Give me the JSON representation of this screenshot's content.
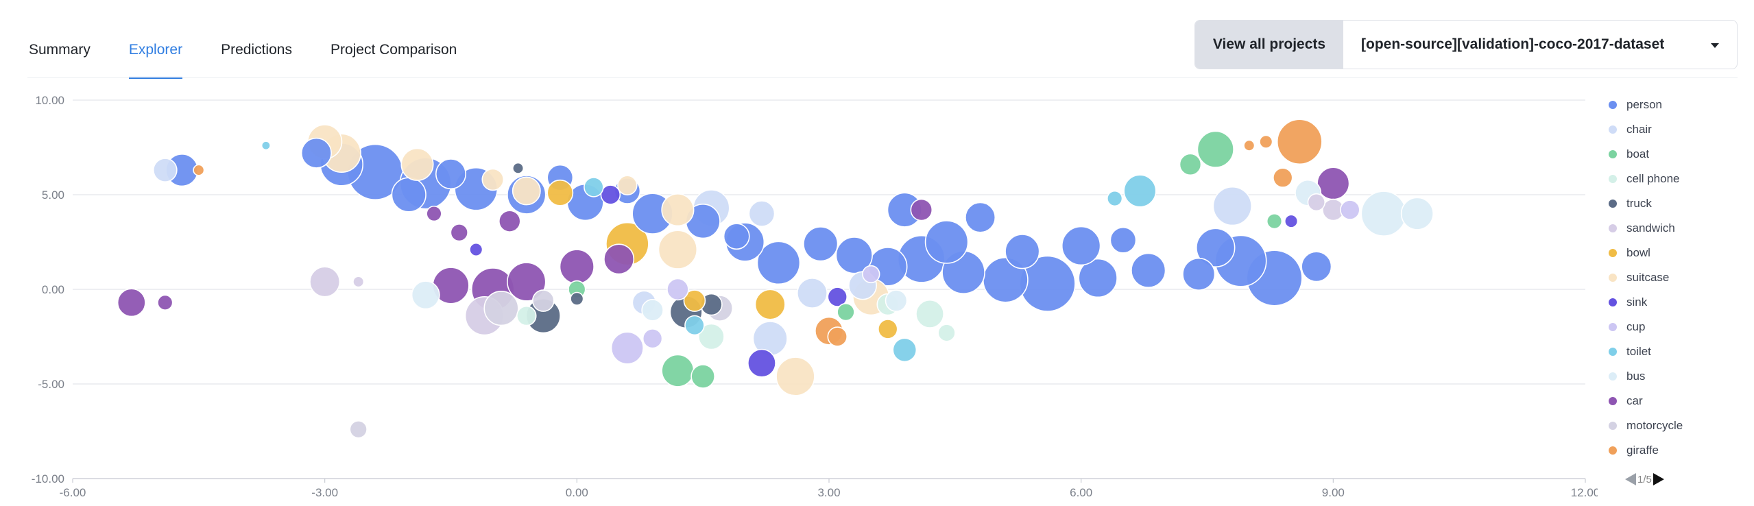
{
  "tabs": [
    {
      "label": "Summary",
      "active": false
    },
    {
      "label": "Explorer",
      "active": true
    },
    {
      "label": "Predictions",
      "active": false
    },
    {
      "label": "Project Comparison",
      "active": false
    }
  ],
  "header": {
    "view_all_label": "View all projects",
    "project_name": "[open-source][validation]-coco-2017-dataset"
  },
  "legend": {
    "items": [
      {
        "label": "person",
        "color": "#6b8ff0"
      },
      {
        "label": "chair",
        "color": "#cfdcf7"
      },
      {
        "label": "boat",
        "color": "#7bd3a0"
      },
      {
        "label": "cell phone",
        "color": "#d4f0e8"
      },
      {
        "label": "truck",
        "color": "#5b6b86"
      },
      {
        "label": "sandwich",
        "color": "#d6cde6"
      },
      {
        "label": "bowl",
        "color": "#f0bc45"
      },
      {
        "label": "suitcase",
        "color": "#f9e4c4"
      },
      {
        "label": "sink",
        "color": "#6452e0"
      },
      {
        "label": "cup",
        "color": "#ccc6f3"
      },
      {
        "label": "toilet",
        "color": "#7fcfe9"
      },
      {
        "label": "bus",
        "color": "#dcedf7"
      },
      {
        "label": "car",
        "color": "#8e55b2"
      },
      {
        "label": "motorcycle",
        "color": "#d4d2e3"
      },
      {
        "label": "giraffe",
        "color": "#f0a05a"
      }
    ],
    "page_label": "1/5"
  },
  "chart_data": {
    "type": "scatter",
    "xlim": [
      -6,
      12
    ],
    "ylim": [
      -10,
      10
    ],
    "x_ticks": [
      "-6.00",
      "-3.00",
      "0.00",
      "3.00",
      "6.00",
      "9.00",
      "12.00"
    ],
    "y_ticks": [
      "10.00",
      "5.00",
      "0.00",
      "-5.00",
      "-10.00"
    ],
    "grid": true,
    "legend_position": "right",
    "series": [
      {
        "name": "person",
        "color": "#6b8ff0",
        "points": [
          [
            -4.7,
            6.3,
            15
          ],
          [
            -3.1,
            7.2,
            14
          ],
          [
            -2.8,
            6.6,
            20
          ],
          [
            -2.4,
            6.2,
            26
          ],
          [
            -1.8,
            5.6,
            24
          ],
          [
            -1.2,
            5.3,
            20
          ],
          [
            -0.6,
            5.0,
            18
          ],
          [
            0.1,
            4.6,
            17
          ],
          [
            0.9,
            4.0,
            19
          ],
          [
            1.5,
            3.6,
            16
          ],
          [
            2.0,
            2.5,
            18
          ],
          [
            2.4,
            1.4,
            20
          ],
          [
            2.9,
            2.4,
            16
          ],
          [
            3.3,
            1.8,
            17
          ],
          [
            3.7,
            1.2,
            18
          ],
          [
            4.1,
            1.6,
            22
          ],
          [
            4.6,
            0.9,
            20
          ],
          [
            5.1,
            0.5,
            21
          ],
          [
            5.6,
            0.3,
            26
          ],
          [
            6.2,
            0.6,
            18
          ],
          [
            6.8,
            1.0,
            16
          ],
          [
            7.4,
            0.8,
            15
          ],
          [
            7.9,
            1.5,
            24
          ],
          [
            8.3,
            0.6,
            26
          ],
          [
            8.8,
            1.2,
            14
          ],
          [
            6.0,
            2.3,
            18
          ],
          [
            5.3,
            2.0,
            16
          ],
          [
            4.4,
            2.5,
            20
          ],
          [
            3.9,
            4.2,
            16
          ],
          [
            -2.0,
            5.0,
            16
          ],
          [
            -1.5,
            6.1,
            14
          ],
          [
            7.6,
            2.2,
            18
          ],
          [
            0.6,
            5.2,
            12
          ],
          [
            -0.2,
            5.9,
            12
          ],
          [
            1.9,
            2.8,
            12
          ],
          [
            4.8,
            3.8,
            14
          ],
          [
            6.5,
            2.6,
            12
          ]
        ]
      },
      {
        "name": "chair",
        "color": "#cfdcf7",
        "points": [
          [
            -4.9,
            6.3,
            11
          ],
          [
            1.6,
            4.3,
            17
          ],
          [
            2.2,
            4.0,
            12
          ],
          [
            7.8,
            4.4,
            18
          ],
          [
            2.3,
            -2.6,
            16
          ],
          [
            2.8,
            -0.2,
            14
          ],
          [
            0.8,
            -0.7,
            11
          ],
          [
            3.4,
            0.2,
            13
          ]
        ]
      },
      {
        "name": "boat",
        "color": "#7bd3a0",
        "points": [
          [
            7.6,
            7.4,
            17
          ],
          [
            7.3,
            6.6,
            10
          ],
          [
            1.2,
            -4.3,
            15
          ],
          [
            1.5,
            -4.6,
            11
          ],
          [
            0.0,
            0.0,
            8
          ],
          [
            8.3,
            3.6,
            7
          ],
          [
            3.2,
            -1.2,
            8
          ]
        ]
      },
      {
        "name": "cell phone",
        "color": "#d4f0e8",
        "points": [
          [
            4.2,
            -1.3,
            13
          ],
          [
            3.7,
            -0.8,
            10
          ],
          [
            1.6,
            -2.5,
            12
          ],
          [
            -0.6,
            -1.4,
            9
          ],
          [
            4.4,
            -2.3,
            8
          ]
        ]
      },
      {
        "name": "truck",
        "color": "#5b6b86",
        "points": [
          [
            -0.4,
            -1.4,
            16
          ],
          [
            1.3,
            -1.2,
            15
          ],
          [
            -0.7,
            6.4,
            5
          ],
          [
            0.0,
            -0.5,
            6
          ],
          [
            1.6,
            -0.8,
            10
          ]
        ]
      },
      {
        "name": "sandwich",
        "color": "#d6cde6",
        "points": [
          [
            -3.0,
            0.4,
            14
          ],
          [
            -1.1,
            -1.4,
            18
          ],
          [
            9.0,
            4.2,
            10
          ],
          [
            8.8,
            4.6,
            8
          ],
          [
            -2.6,
            0.4,
            5
          ]
        ]
      },
      {
        "name": "bowl",
        "color": "#f0bc45",
        "points": [
          [
            0.6,
            2.4,
            20
          ],
          [
            -0.2,
            5.1,
            12
          ],
          [
            2.3,
            -0.8,
            14
          ],
          [
            3.7,
            -2.1,
            9
          ],
          [
            1.4,
            -0.6,
            10
          ]
        ]
      },
      {
        "name": "suitcase",
        "color": "#f9e4c4",
        "points": [
          [
            -3.0,
            7.8,
            16
          ],
          [
            -2.8,
            7.2,
            18
          ],
          [
            -1.9,
            6.6,
            15
          ],
          [
            1.2,
            2.1,
            18
          ],
          [
            1.2,
            4.2,
            15
          ],
          [
            2.6,
            -4.6,
            18
          ],
          [
            3.5,
            -0.4,
            17
          ],
          [
            -0.6,
            5.2,
            13
          ],
          [
            -1.0,
            5.8,
            10
          ],
          [
            0.6,
            5.5,
            9
          ]
        ]
      },
      {
        "name": "sink",
        "color": "#6452e0",
        "points": [
          [
            2.2,
            -3.9,
            13
          ],
          [
            0.4,
            5.0,
            9
          ],
          [
            3.1,
            -0.4,
            9
          ],
          [
            8.5,
            3.6,
            6
          ],
          [
            -1.2,
            2.1,
            6
          ]
        ]
      },
      {
        "name": "cup",
        "color": "#ccc6f3",
        "points": [
          [
            0.6,
            -3.1,
            15
          ],
          [
            1.2,
            0.0,
            10
          ],
          [
            0.9,
            -2.6,
            9
          ],
          [
            9.2,
            4.2,
            9
          ],
          [
            3.5,
            0.8,
            8
          ]
        ]
      },
      {
        "name": "toilet",
        "color": "#7fcfe9",
        "points": [
          [
            6.7,
            5.2,
            15
          ],
          [
            3.9,
            -3.2,
            11
          ],
          [
            0.2,
            5.4,
            9
          ],
          [
            1.4,
            -1.9,
            9
          ],
          [
            6.4,
            4.8,
            7
          ],
          [
            -3.7,
            7.6,
            4
          ]
        ]
      },
      {
        "name": "bus",
        "color": "#dcedf7",
        "points": [
          [
            9.6,
            4.0,
            21
          ],
          [
            10.0,
            4.0,
            15
          ],
          [
            8.7,
            5.1,
            12
          ],
          [
            3.8,
            -0.6,
            10
          ],
          [
            -1.8,
            -0.3,
            13
          ],
          [
            0.9,
            -1.1,
            10
          ]
        ]
      },
      {
        "name": "car",
        "color": "#8e55b2",
        "points": [
          [
            -5.3,
            -0.7,
            13
          ],
          [
            -4.9,
            -0.7,
            7
          ],
          [
            -1.5,
            0.2,
            17
          ],
          [
            -1.0,
            0.0,
            20
          ],
          [
            -0.6,
            0.4,
            18
          ],
          [
            0.0,
            1.2,
            16
          ],
          [
            0.5,
            1.6,
            14
          ],
          [
            9.0,
            5.6,
            15
          ],
          [
            4.1,
            4.2,
            10
          ],
          [
            -1.7,
            4.0,
            7
          ],
          [
            -1.4,
            3.0,
            8
          ],
          [
            -0.8,
            3.6,
            10
          ]
        ]
      },
      {
        "name": "motorcycle",
        "color": "#d4d2e3",
        "points": [
          [
            -2.6,
            -7.4,
            8
          ],
          [
            -0.9,
            -1.0,
            16
          ],
          [
            -0.4,
            -0.6,
            10
          ],
          [
            1.7,
            -1.0,
            12
          ]
        ]
      },
      {
        "name": "giraffe",
        "color": "#f0a05a",
        "points": [
          [
            8.6,
            7.8,
            21
          ],
          [
            3.0,
            -2.2,
            13
          ],
          [
            3.1,
            -2.5,
            9
          ],
          [
            8.4,
            5.9,
            9
          ],
          [
            8.2,
            7.8,
            6
          ],
          [
            -4.5,
            6.3,
            5
          ],
          [
            8.0,
            7.6,
            5
          ]
        ]
      }
    ]
  }
}
